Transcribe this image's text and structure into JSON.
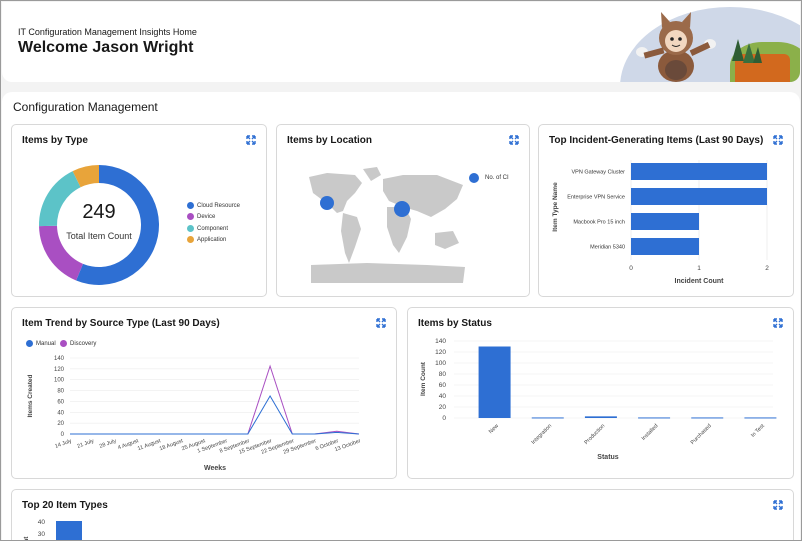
{
  "header": {
    "app_name": "IT Configuration Management Insights Home",
    "welcome": "Welcome Jason Wright"
  },
  "section": {
    "title": "Configuration Management"
  },
  "colors": {
    "blue": "#2e6fd3",
    "purple": "#a94fc2",
    "teal": "#5cc3c8",
    "orange": "#e8a43a",
    "map": "#c9c9c9"
  },
  "cards": {
    "items_by_type": {
      "title": "Items by Type",
      "total": "249",
      "total_label": "Total Item Count",
      "legend": [
        "Cloud Resource",
        "Device",
        "Component",
        "Application"
      ],
      "chart_data": {
        "type": "pie",
        "categories": [
          "Cloud Resource",
          "Device",
          "Component",
          "Application"
        ],
        "values": [
          140,
          46,
          45,
          18
        ]
      }
    },
    "items_by_location": {
      "title": "Items by Location",
      "legend": "No. of CI"
    },
    "top_incident": {
      "title": "Top Incident-Generating Items (Last 90 Days)",
      "ylabel": "Item Type Name",
      "xlabel": "Incident Count",
      "chart_data": {
        "type": "bar",
        "categories": [
          "VPN Gateway Cluster",
          "Enterprise VPN Service",
          "Macbook Pro 15 inch",
          "Meridian 5340"
        ],
        "values": [
          2,
          2,
          1,
          1
        ],
        "xlim": [
          0,
          2
        ],
        "ticks": [
          "0",
          "1",
          "2"
        ]
      }
    },
    "trend": {
      "title": "Item Trend by Source Type (Last 90 Days)",
      "legend": [
        "Manual",
        "Discovery"
      ],
      "ylabel": "Items Created",
      "xlabel": "Weeks",
      "chart_data": {
        "type": "line",
        "x": [
          "14 July",
          "21 July",
          "28 July",
          "4 August",
          "11 August",
          "18 August",
          "25 August",
          "1 September",
          "8 September",
          "15 September",
          "22 September",
          "29 September",
          "6 October",
          "13 October"
        ],
        "series": [
          {
            "name": "Manual",
            "values": [
              0,
              0,
              0,
              0,
              0,
              0,
              0,
              0,
              0,
              70,
              0,
              0,
              3,
              0
            ]
          },
          {
            "name": "Discovery",
            "values": [
              0,
              0,
              0,
              0,
              0,
              0,
              0,
              0,
              0,
              125,
              0,
              0,
              5,
              0
            ]
          }
        ],
        "ylim": [
          0,
          140
        ],
        "yticks": [
          "0",
          "20",
          "40",
          "60",
          "80",
          "100",
          "120",
          "140"
        ]
      }
    },
    "status": {
      "title": "Items by Status",
      "ylabel": "Item Count",
      "xlabel": "Status",
      "chart_data": {
        "type": "bar",
        "categories": [
          "New",
          "Integration",
          "Production",
          "Installed",
          "Purchased",
          "In Test"
        ],
        "values": [
          130,
          1,
          3,
          1,
          1,
          1
        ],
        "ylim": [
          0,
          140
        ],
        "yticks": [
          "0",
          "20",
          "40",
          "60",
          "80",
          "100",
          "120",
          "140"
        ]
      }
    },
    "top20": {
      "title": "Top 20 Item Types",
      "ylabel": "Count",
      "chart_data": {
        "type": "bar",
        "categories": [
          ""
        ],
        "values": [
          40
        ],
        "ylim": [
          0,
          40
        ],
        "yticks": [
          "40",
          "30"
        ]
      }
    }
  }
}
